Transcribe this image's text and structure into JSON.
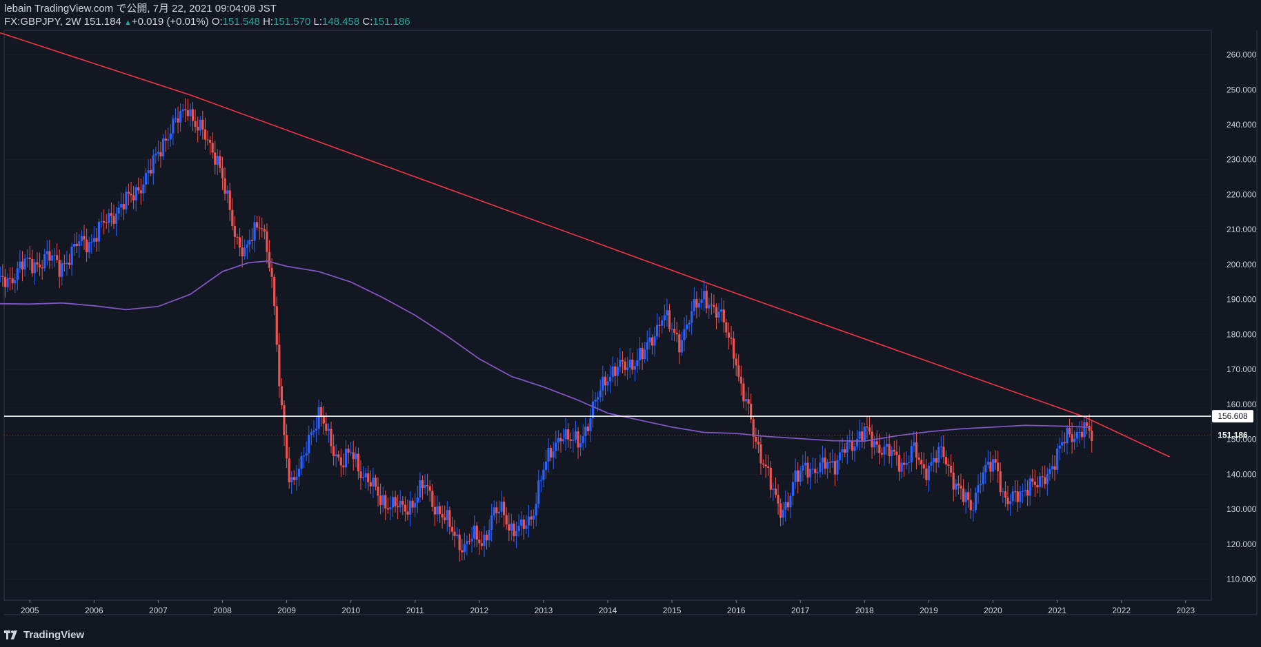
{
  "header": {
    "published": "lebain TradingView.com で公開, 7月 22, 2021 09:04:08 JST",
    "symbol": "FX:GBPJPY, 2W",
    "last_price": "151.184",
    "change": "+0.019 (+0.01%)",
    "open_label": "O:",
    "open": "151.548",
    "high_label": "H:",
    "high": "151.570",
    "low_label": "L:",
    "low": "148.458",
    "close_label": "C:",
    "close": "151.186"
  },
  "footer": {
    "brand": "TradingView"
  },
  "colors": {
    "background": "#131722",
    "up": "#2962ff",
    "down": "#ef5350",
    "trendline": "#f23645",
    "moving_average": "#7e57c2",
    "horizontal_line": "#ffffff",
    "grid": "#2a2e39"
  },
  "chart_data": {
    "type": "candlestick",
    "timeframe": "2W",
    "x_ticks": [
      "2005",
      "2006",
      "2007",
      "2008",
      "2009",
      "2010",
      "2011",
      "2012",
      "2013",
      "2014",
      "2015",
      "2016",
      "2017",
      "2018",
      "2019",
      "2020",
      "2021",
      "2022",
      "2023"
    ],
    "y_ticks": [
      "110.000",
      "120.000",
      "130.000",
      "140.000",
      "150.000",
      "160.000",
      "170.000",
      "180.000",
      "190.000",
      "200.000",
      "210.000",
      "220.000",
      "230.000",
      "240.000",
      "250.000",
      "260.000"
    ],
    "ylim": [
      104,
      267
    ],
    "horizontal_line": {
      "value": 156.608,
      "label": "156.608"
    },
    "last_price_label": {
      "value": 151.186,
      "label": "151.186"
    },
    "trendline": {
      "points": [
        [
          2004.5,
          266.5
        ],
        [
          2007.5,
          248.5
        ],
        [
          2015.5,
          195
        ],
        [
          2021.4,
          156.6
        ],
        [
          2022.75,
          145
        ]
      ]
    },
    "moving_average": [
      [
        2004.5,
        188.8
      ],
      [
        2005.0,
        188.7
      ],
      [
        2005.5,
        189.0
      ],
      [
        2006.0,
        188.2
      ],
      [
        2006.5,
        187.1
      ],
      [
        2007.0,
        188.0
      ],
      [
        2007.5,
        191.5
      ],
      [
        2008.0,
        198.0
      ],
      [
        2008.4,
        200.5
      ],
      [
        2008.7,
        201.0
      ],
      [
        2009.0,
        199.5
      ],
      [
        2009.5,
        198.0
      ],
      [
        2010.0,
        195.0
      ],
      [
        2010.5,
        190.5
      ],
      [
        2011.0,
        185.5
      ],
      [
        2011.5,
        179.5
      ],
      [
        2012.0,
        173.0
      ],
      [
        2012.5,
        168.0
      ],
      [
        2013.0,
        165.0
      ],
      [
        2013.5,
        161.5
      ],
      [
        2014.0,
        157.5
      ],
      [
        2014.5,
        155.5
      ],
      [
        2015.0,
        153.5
      ],
      [
        2015.5,
        152.0
      ],
      [
        2016.0,
        151.7
      ],
      [
        2016.5,
        150.8
      ],
      [
        2017.0,
        150.2
      ],
      [
        2017.5,
        149.6
      ],
      [
        2018.0,
        149.5
      ],
      [
        2018.5,
        151.0
      ],
      [
        2019.0,
        152.2
      ],
      [
        2019.5,
        153.0
      ],
      [
        2020.0,
        153.5
      ],
      [
        2020.5,
        154.0
      ],
      [
        2021.0,
        153.8
      ],
      [
        2021.5,
        153.5
      ]
    ],
    "price_path": [
      [
        2004.5,
        196
      ],
      [
        2004.7,
        194
      ],
      [
        2004.9,
        201
      ],
      [
        2005.1,
        199
      ],
      [
        2005.3,
        203
      ],
      [
        2005.5,
        199
      ],
      [
        2005.8,
        206
      ],
      [
        2006.0,
        207
      ],
      [
        2006.3,
        214
      ],
      [
        2006.6,
        219
      ],
      [
        2006.9,
        226
      ],
      [
        2007.1,
        235
      ],
      [
        2007.3,
        240
      ],
      [
        2007.5,
        246
      ],
      [
        2007.6,
        240
      ],
      [
        2007.8,
        236
      ],
      [
        2007.95,
        231
      ],
      [
        2008.1,
        219
      ],
      [
        2008.25,
        208
      ],
      [
        2008.4,
        203
      ],
      [
        2008.55,
        210
      ],
      [
        2008.65,
        213
      ],
      [
        2008.8,
        197
      ],
      [
        2008.95,
        160
      ],
      [
        2009.0,
        152
      ],
      [
        2009.1,
        137
      ],
      [
        2009.25,
        141
      ],
      [
        2009.4,
        152
      ],
      [
        2009.55,
        157
      ],
      [
        2009.7,
        150
      ],
      [
        2009.9,
        143
      ],
      [
        2010.05,
        146
      ],
      [
        2010.2,
        141
      ],
      [
        2010.35,
        137
      ],
      [
        2010.5,
        133
      ],
      [
        2010.7,
        131
      ],
      [
        2010.85,
        130
      ],
      [
        2011.0,
        132
      ],
      [
        2011.2,
        137
      ],
      [
        2011.35,
        131
      ],
      [
        2011.5,
        127
      ],
      [
        2011.65,
        123
      ],
      [
        2011.8,
        119
      ],
      [
        2011.95,
        122
      ],
      [
        2012.1,
        121
      ],
      [
        2012.25,
        128
      ],
      [
        2012.4,
        130
      ],
      [
        2012.55,
        124
      ],
      [
        2012.7,
        124
      ],
      [
        2012.85,
        128
      ],
      [
        2013.0,
        139
      ],
      [
        2013.15,
        146
      ],
      [
        2013.3,
        152
      ],
      [
        2013.45,
        149
      ],
      [
        2013.6,
        150
      ],
      [
        2013.75,
        155
      ],
      [
        2013.9,
        163
      ],
      [
        2014.0,
        168
      ],
      [
        2014.2,
        170
      ],
      [
        2014.4,
        172
      ],
      [
        2014.6,
        174
      ],
      [
        2014.75,
        180
      ],
      [
        2014.9,
        186
      ],
      [
        2015.0,
        182
      ],
      [
        2015.15,
        178
      ],
      [
        2015.3,
        184
      ],
      [
        2015.45,
        189
      ],
      [
        2015.55,
        192
      ],
      [
        2015.7,
        186
      ],
      [
        2015.85,
        184
      ],
      [
        2016.0,
        176
      ],
      [
        2016.1,
        164
      ],
      [
        2016.25,
        158
      ],
      [
        2016.35,
        150
      ],
      [
        2016.45,
        143
      ],
      [
        2016.6,
        136
      ],
      [
        2016.75,
        130
      ],
      [
        2016.85,
        131
      ],
      [
        2016.95,
        138
      ],
      [
        2017.1,
        144
      ],
      [
        2017.25,
        139
      ],
      [
        2017.45,
        145
      ],
      [
        2017.6,
        142
      ],
      [
        2017.75,
        148
      ],
      [
        2017.9,
        150
      ],
      [
        2018.05,
        152
      ],
      [
        2018.2,
        149
      ],
      [
        2018.35,
        147
      ],
      [
        2018.5,
        145
      ],
      [
        2018.65,
        143
      ],
      [
        2018.8,
        147
      ],
      [
        2018.95,
        141
      ],
      [
        2019.1,
        144
      ],
      [
        2019.25,
        146
      ],
      [
        2019.4,
        140
      ],
      [
        2019.55,
        134
      ],
      [
        2019.7,
        130
      ],
      [
        2019.85,
        140
      ],
      [
        2020.0,
        142
      ],
      [
        2020.1,
        143
      ],
      [
        2020.2,
        134
      ],
      [
        2020.3,
        132
      ],
      [
        2020.45,
        134
      ],
      [
        2020.6,
        138
      ],
      [
        2020.75,
        136
      ],
      [
        2020.9,
        141
      ],
      [
        2021.05,
        146
      ],
      [
        2021.2,
        151
      ],
      [
        2021.35,
        152
      ],
      [
        2021.45,
        153
      ],
      [
        2021.55,
        151
      ]
    ]
  }
}
